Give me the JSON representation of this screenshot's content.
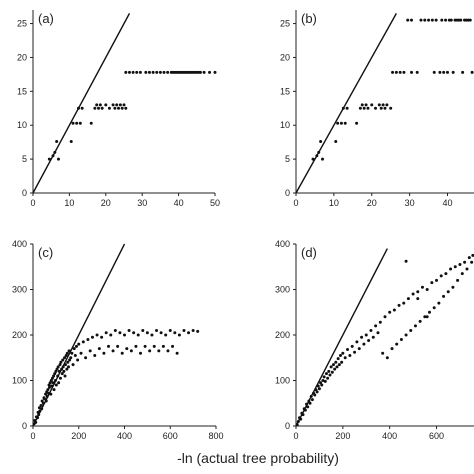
{
  "xlabel": "-ln (actual tree probability)",
  "chart_data": [
    {
      "type": "scatter",
      "panel_label": "(a)",
      "xlim": [
        0,
        50
      ],
      "ylim": [
        0,
        27
      ],
      "xticks": [
        0,
        10,
        20,
        30,
        40,
        50
      ],
      "yticks": [
        0,
        5,
        10,
        15,
        20,
        25
      ],
      "reference_line": {
        "x": [
          0,
          26.5
        ],
        "y": [
          0,
          26.5
        ]
      },
      "points": [
        [
          4.5,
          5
        ],
        [
          5.5,
          5.5
        ],
        [
          6,
          6
        ],
        [
          6.5,
          7.6
        ],
        [
          7,
          5
        ],
        [
          10.5,
          7.6
        ],
        [
          11,
          10.3
        ],
        [
          12,
          10.3
        ],
        [
          12.5,
          12.5
        ],
        [
          13,
          10.3
        ],
        [
          13.5,
          12.5
        ],
        [
          16,
          10.3
        ],
        [
          17,
          12.5
        ],
        [
          17.5,
          13
        ],
        [
          18,
          12.5
        ],
        [
          18.5,
          13
        ],
        [
          19,
          12.5
        ],
        [
          20,
          13
        ],
        [
          21,
          12.5
        ],
        [
          22,
          13
        ],
        [
          22.5,
          12.5
        ],
        [
          23,
          13
        ],
        [
          23.5,
          12.5
        ],
        [
          24,
          13
        ],
        [
          24.5,
          12.5
        ],
        [
          25,
          13
        ],
        [
          25.5,
          12.5
        ],
        [
          25.5,
          17.8
        ],
        [
          26.5,
          17.8
        ],
        [
          27.5,
          17.8
        ],
        [
          28.5,
          17.8
        ],
        [
          29.5,
          17.8
        ],
        [
          31,
          17.8
        ],
        [
          32,
          17.8
        ],
        [
          33,
          17.8
        ],
        [
          34,
          17.8
        ],
        [
          35,
          17.8
        ],
        [
          36,
          17.8
        ],
        [
          37,
          17.8
        ],
        [
          38,
          17.8
        ],
        [
          38.5,
          17.8
        ],
        [
          39,
          17.8
        ],
        [
          39.5,
          17.8
        ],
        [
          40,
          17.8
        ],
        [
          40.5,
          17.8
        ],
        [
          41,
          17.8
        ],
        [
          41.5,
          17.8
        ],
        [
          42,
          17.8
        ],
        [
          42.5,
          17.8
        ],
        [
          43,
          17.8
        ],
        [
          43.5,
          17.8
        ],
        [
          44,
          17.8
        ],
        [
          44.5,
          17.8
        ],
        [
          45,
          17.8
        ],
        [
          45.5,
          17.8
        ],
        [
          46,
          17.8
        ],
        [
          47,
          17.8
        ],
        [
          48.5,
          17.8
        ],
        [
          50,
          17.8
        ]
      ]
    },
    {
      "type": "scatter",
      "panel_label": "(b)",
      "xlim": [
        0,
        47
      ],
      "ylim": [
        0,
        27
      ],
      "xticks": [
        0,
        10,
        20,
        30,
        40
      ],
      "yticks": [
        0,
        5,
        10,
        15,
        20,
        25
      ],
      "reference_line": {
        "x": [
          0,
          26.5
        ],
        "y": [
          0,
          26.5
        ]
      },
      "points": [
        [
          4.5,
          5
        ],
        [
          5.5,
          5.5
        ],
        [
          6,
          6
        ],
        [
          6.5,
          7.6
        ],
        [
          7,
          5
        ],
        [
          10.5,
          7.6
        ],
        [
          11,
          10.3
        ],
        [
          12,
          10.3
        ],
        [
          12.5,
          12.5
        ],
        [
          13,
          10.3
        ],
        [
          13.5,
          12.5
        ],
        [
          16,
          10.3
        ],
        [
          17,
          12.5
        ],
        [
          17.5,
          13
        ],
        [
          18,
          12.5
        ],
        [
          18.5,
          13
        ],
        [
          19,
          12.5
        ],
        [
          20,
          13
        ],
        [
          21,
          12.5
        ],
        [
          22,
          13
        ],
        [
          22.5,
          12.5
        ],
        [
          23,
          13
        ],
        [
          23.5,
          12.5
        ],
        [
          24,
          13
        ],
        [
          25,
          12.5
        ],
        [
          25.5,
          17.8
        ],
        [
          26.5,
          17.8
        ],
        [
          27.5,
          17.8
        ],
        [
          28.5,
          17.8
        ],
        [
          29.5,
          25.5
        ],
        [
          30.5,
          25.5
        ],
        [
          30.5,
          17.8
        ],
        [
          32,
          17.8
        ],
        [
          33,
          25.5
        ],
        [
          34,
          25.5
        ],
        [
          35,
          25.5
        ],
        [
          36,
          25.5
        ],
        [
          36.5,
          17.8
        ],
        [
          37,
          25.5
        ],
        [
          38,
          17.8
        ],
        [
          38.5,
          25.5
        ],
        [
          39,
          17.8
        ],
        [
          39.5,
          25.5
        ],
        [
          40,
          17.8
        ],
        [
          40.5,
          25.5
        ],
        [
          41,
          25.5
        ],
        [
          41.5,
          17.8
        ],
        [
          42,
          25.5
        ],
        [
          42.5,
          25.5
        ],
        [
          43,
          25.5
        ],
        [
          43.5,
          25.5
        ],
        [
          44,
          17.8
        ],
        [
          44.5,
          25.5
        ],
        [
          45,
          25.5
        ],
        [
          45.5,
          25.5
        ],
        [
          46,
          25.5
        ],
        [
          46.5,
          17.8
        ]
      ]
    },
    {
      "type": "scatter",
      "panel_label": "(c)",
      "xlim": [
        0,
        800
      ],
      "ylim": [
        0,
        400
      ],
      "xticks": [
        0,
        200,
        400,
        600,
        800
      ],
      "yticks": [
        0,
        100,
        200,
        300,
        400
      ],
      "reference_line": {
        "x": [
          0,
          400
        ],
        "y": [
          0,
          400
        ]
      },
      "points": [
        [
          5,
          5
        ],
        [
          8,
          12
        ],
        [
          12,
          8
        ],
        [
          15,
          20
        ],
        [
          20,
          18
        ],
        [
          22,
          30
        ],
        [
          25,
          25
        ],
        [
          28,
          40
        ],
        [
          30,
          33
        ],
        [
          35,
          45
        ],
        [
          38,
          38
        ],
        [
          40,
          55
        ],
        [
          45,
          50
        ],
        [
          48,
          62
        ],
        [
          50,
          60
        ],
        [
          55,
          70
        ],
        [
          58,
          55
        ],
        [
          60,
          75
        ],
        [
          62,
          65
        ],
        [
          65,
          80
        ],
        [
          68,
          72
        ],
        [
          70,
          90
        ],
        [
          72,
          85
        ],
        [
          75,
          95
        ],
        [
          78,
          70
        ],
        [
          80,
          100
        ],
        [
          82,
          88
        ],
        [
          85,
          105
        ],
        [
          88,
          95
        ],
        [
          90,
          110
        ],
        [
          92,
          80
        ],
        [
          95,
          115
        ],
        [
          98,
          100
        ],
        [
          100,
          120
        ],
        [
          102,
          90
        ],
        [
          105,
          125
        ],
        [
          108,
          110
        ],
        [
          110,
          130
        ],
        [
          112,
          95
        ],
        [
          115,
          120
        ],
        [
          118,
          135
        ],
        [
          120,
          105
        ],
        [
          122,
          140
        ],
        [
          125,
          125
        ],
        [
          128,
          115
        ],
        [
          130,
          145
        ],
        [
          132,
          130
        ],
        [
          135,
          120
        ],
        [
          138,
          150
        ],
        [
          140,
          110
        ],
        [
          142,
          135
        ],
        [
          145,
          155
        ],
        [
          148,
          125
        ],
        [
          150,
          160
        ],
        [
          152,
          140
        ],
        [
          155,
          130
        ],
        [
          158,
          165
        ],
        [
          160,
          145
        ],
        [
          165,
          150
        ],
        [
          170,
          160
        ],
        [
          175,
          135
        ],
        [
          180,
          170
        ],
        [
          185,
          155
        ],
        [
          190,
          175
        ],
        [
          195,
          145
        ],
        [
          200,
          180
        ],
        [
          210,
          160
        ],
        [
          220,
          185
        ],
        [
          230,
          150
        ],
        [
          240,
          190
        ],
        [
          250,
          165
        ],
        [
          260,
          195
        ],
        [
          270,
          155
        ],
        [
          280,
          200
        ],
        [
          290,
          170
        ],
        [
          300,
          195
        ],
        [
          310,
          160
        ],
        [
          320,
          205
        ],
        [
          330,
          175
        ],
        [
          340,
          200
        ],
        [
          350,
          165
        ],
        [
          360,
          210
        ],
        [
          370,
          175
        ],
        [
          380,
          205
        ],
        [
          390,
          160
        ],
        [
          400,
          200
        ],
        [
          410,
          170
        ],
        [
          420,
          210
        ],
        [
          430,
          165
        ],
        [
          440,
          205
        ],
        [
          450,
          175
        ],
        [
          460,
          200
        ],
        [
          470,
          160
        ],
        [
          480,
          210
        ],
        [
          490,
          175
        ],
        [
          500,
          205
        ],
        [
          510,
          165
        ],
        [
          520,
          200
        ],
        [
          530,
          175
        ],
        [
          540,
          210
        ],
        [
          550,
          165
        ],
        [
          560,
          205
        ],
        [
          570,
          175
        ],
        [
          580,
          200
        ],
        [
          590,
          165
        ],
        [
          600,
          210
        ],
        [
          610,
          175
        ],
        [
          620,
          205
        ],
        [
          630,
          160
        ],
        [
          640,
          200
        ],
        [
          660,
          210
        ],
        [
          680,
          205
        ],
        [
          700,
          210
        ],
        [
          720,
          208
        ]
      ]
    },
    {
      "type": "scatter",
      "panel_label": "(d)",
      "xlim": [
        0,
        760
      ],
      "ylim": [
        0,
        400
      ],
      "xticks": [
        0,
        200,
        400,
        600
      ],
      "yticks": [
        0,
        100,
        200,
        300,
        400
      ],
      "reference_line": {
        "x": [
          0,
          390
        ],
        "y": [
          0,
          390
        ]
      },
      "points": [
        [
          5,
          3
        ],
        [
          10,
          10
        ],
        [
          15,
          18
        ],
        [
          20,
          15
        ],
        [
          25,
          28
        ],
        [
          30,
          25
        ],
        [
          35,
          38
        ],
        [
          40,
          35
        ],
        [
          45,
          48
        ],
        [
          50,
          42
        ],
        [
          55,
          55
        ],
        [
          60,
          50
        ],
        [
          65,
          65
        ],
        [
          70,
          58
        ],
        [
          75,
          72
        ],
        [
          80,
          68
        ],
        [
          85,
          80
        ],
        [
          90,
          75
        ],
        [
          95,
          88
        ],
        [
          100,
          82
        ],
        [
          105,
          95
        ],
        [
          110,
          90
        ],
        [
          115,
          100
        ],
        [
          120,
          108
        ],
        [
          125,
          98
        ],
        [
          130,
          115
        ],
        [
          135,
          105
        ],
        [
          140,
          120
        ],
        [
          145,
          112
        ],
        [
          150,
          130
        ],
        [
          155,
          118
        ],
        [
          160,
          135
        ],
        [
          165,
          125
        ],
        [
          170,
          140
        ],
        [
          175,
          130
        ],
        [
          180,
          148
        ],
        [
          185,
          135
        ],
        [
          190,
          155
        ],
        [
          195,
          140
        ],
        [
          200,
          160
        ],
        [
          210,
          150
        ],
        [
          220,
          168
        ],
        [
          230,
          155
        ],
        [
          240,
          175
        ],
        [
          250,
          162
        ],
        [
          260,
          185
        ],
        [
          270,
          170
        ],
        [
          280,
          195
        ],
        [
          290,
          180
        ],
        [
          300,
          200
        ],
        [
          310,
          188
        ],
        [
          320,
          210
        ],
        [
          330,
          195
        ],
        [
          340,
          220
        ],
        [
          350,
          205
        ],
        [
          360,
          228
        ],
        [
          370,
          160
        ],
        [
          380,
          240
        ],
        [
          390,
          150
        ],
        [
          400,
          250
        ],
        [
          410,
          170
        ],
        [
          420,
          255
        ],
        [
          430,
          180
        ],
        [
          440,
          265
        ],
        [
          450,
          190
        ],
        [
          460,
          270
        ],
        [
          470,
          200
        ],
        [
          480,
          280
        ],
        [
          490,
          210
        ],
        [
          500,
          290
        ],
        [
          510,
          220
        ],
        [
          520,
          295
        ],
        [
          530,
          230
        ],
        [
          540,
          305
        ],
        [
          550,
          240
        ],
        [
          560,
          300
        ],
        [
          570,
          250
        ],
        [
          580,
          315
        ],
        [
          590,
          260
        ],
        [
          600,
          320
        ],
        [
          610,
          270
        ],
        [
          620,
          330
        ],
        [
          630,
          285
        ],
        [
          640,
          335
        ],
        [
          650,
          295
        ],
        [
          660,
          345
        ],
        [
          670,
          305
        ],
        [
          680,
          350
        ],
        [
          690,
          320
        ],
        [
          700,
          355
        ],
        [
          710,
          335
        ],
        [
          720,
          360
        ],
        [
          730,
          345
        ],
        [
          740,
          370
        ],
        [
          750,
          360
        ],
        [
          755,
          375
        ],
        [
          470,
          362
        ],
        [
          520,
          280
        ],
        [
          560,
          240
        ]
      ]
    }
  ]
}
